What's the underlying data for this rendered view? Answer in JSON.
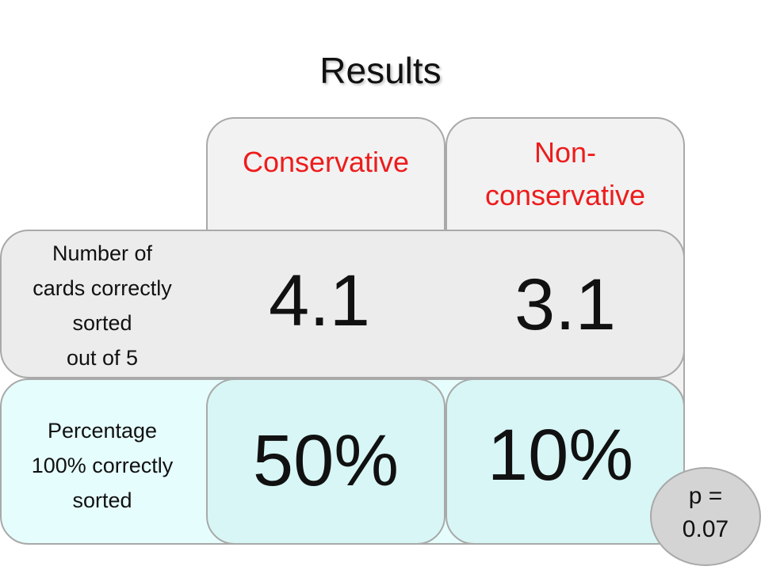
{
  "title": "Results",
  "columns": [
    {
      "label": "Conservative"
    },
    {
      "label_line1": "Non-",
      "label_line2": "conservative"
    }
  ],
  "rows": [
    {
      "label_lines": [
        "Number of",
        "cards correctly",
        "sorted",
        "out of 5"
      ],
      "values": [
        "4.1",
        "3.1"
      ]
    },
    {
      "label_lines": [
        "Percentage",
        "100% correctly",
        "sorted"
      ],
      "values": [
        "50%",
        "10%"
      ]
    }
  ],
  "p_value": {
    "line1": "p =",
    "line2": "0.07"
  },
  "colors": {
    "header_text": "#ee1c1c",
    "border": "#a9a9a9",
    "row1_fill": "#ececec",
    "row2_fill": "#e6fdfd",
    "pvalue_fill": "#d4d4d4"
  }
}
